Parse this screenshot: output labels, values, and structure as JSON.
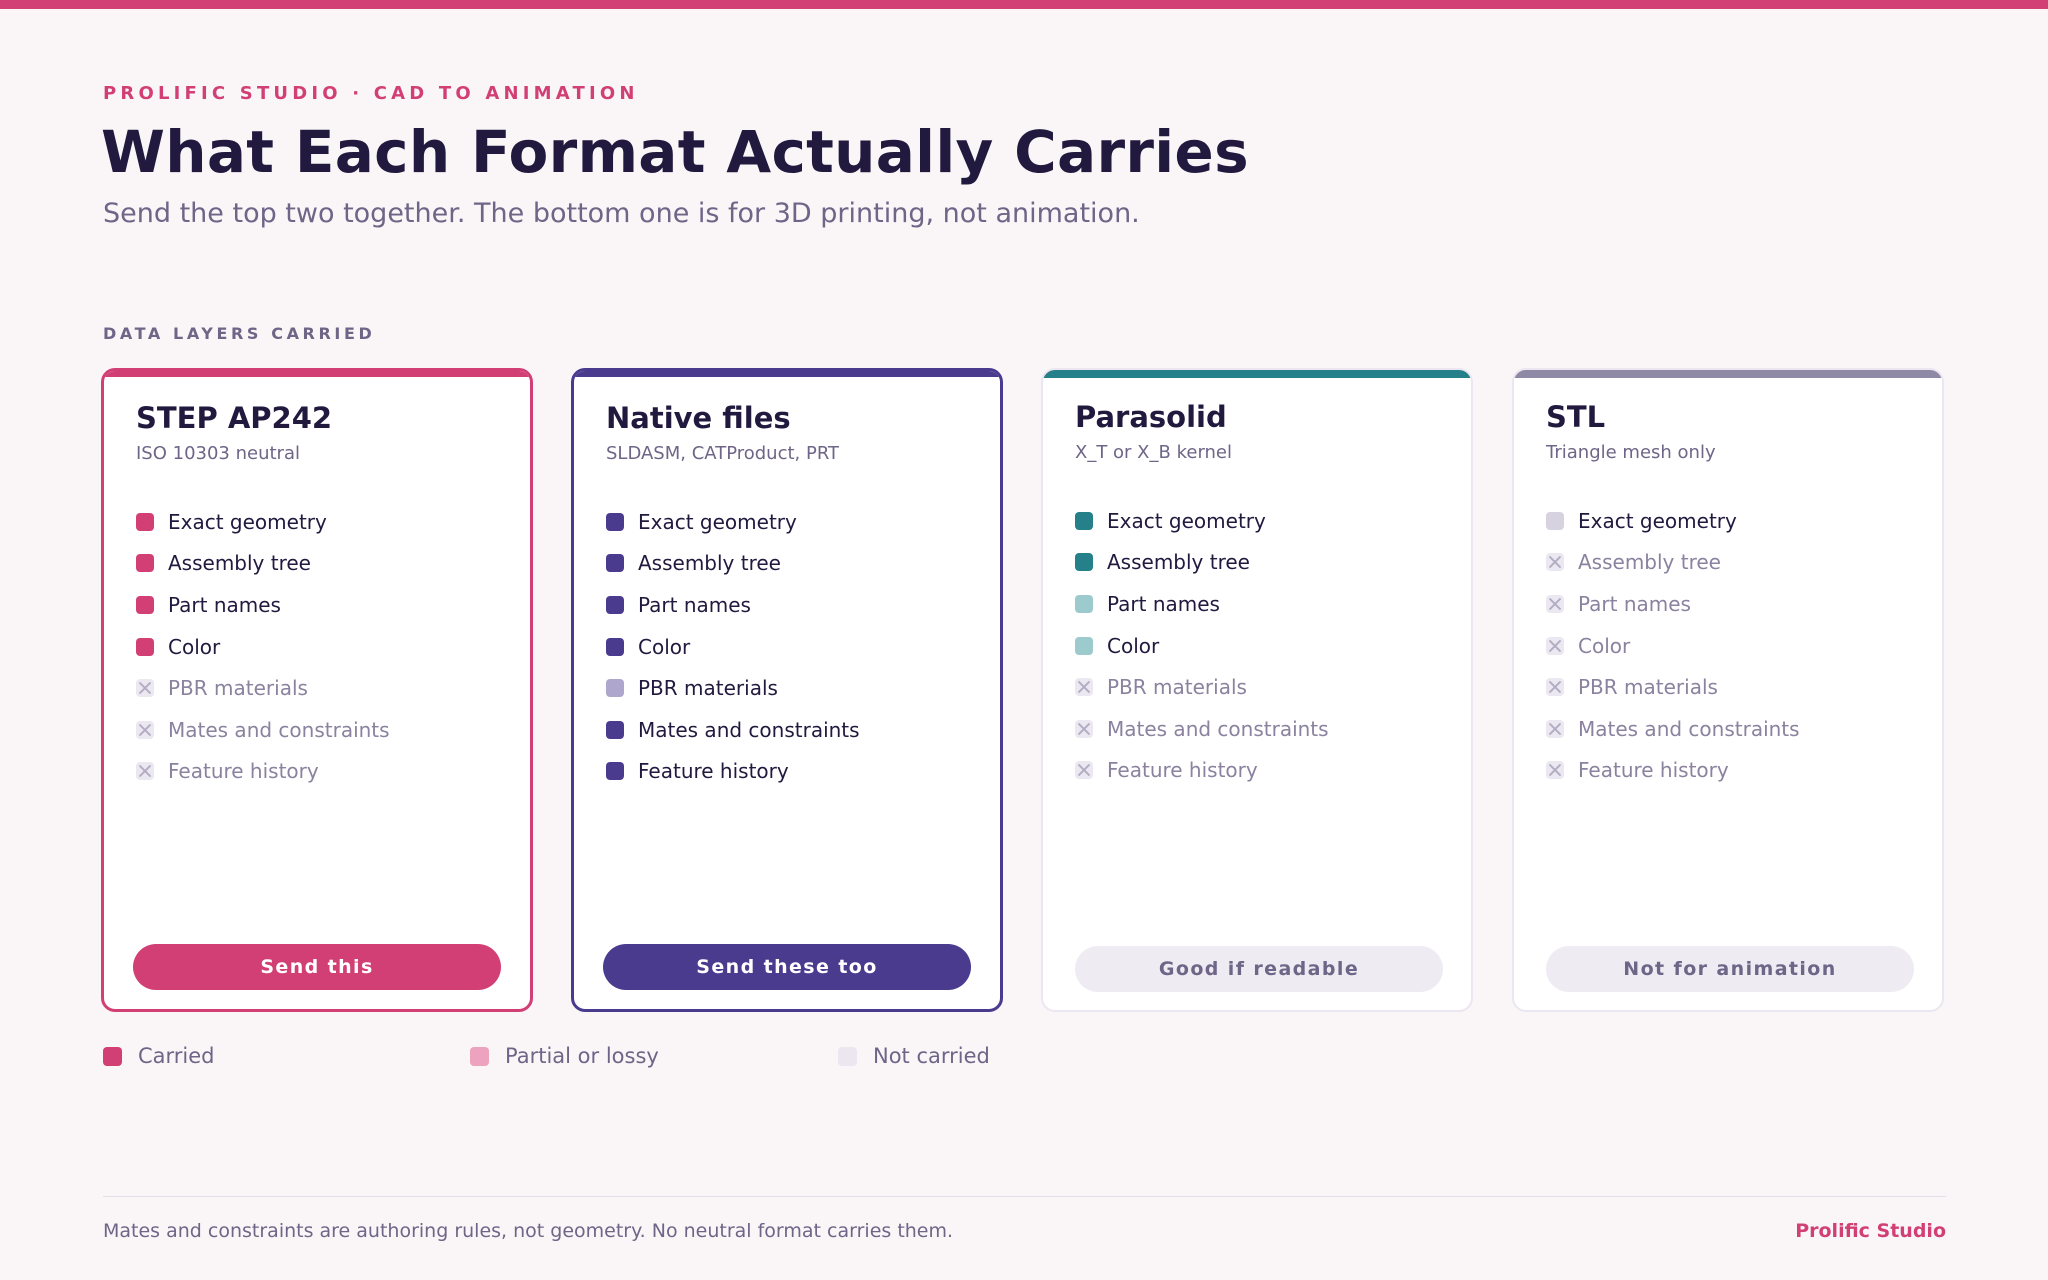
{
  "eyebrow": "PROLIFIC STUDIO · CAD TO ANIMATION",
  "title": "What Each Format Actually Carries",
  "subtitle": "Send the top two together. The bottom one is for 3D printing, not animation.",
  "section_label": "DATA LAYERS CARRIED",
  "colors": {
    "brand": "#d23f74",
    "native": "#4a3b8f",
    "parasolid": "#25808a",
    "stl": "#8e8aa6"
  },
  "cards": [
    {
      "title": "STEP AP242",
      "subtitle": "ISO 10303 neutral",
      "accent": "#d23f74",
      "highlight": true,
      "button": "Send this",
      "button_style": "primary",
      "features": [
        {
          "label": "Exact geometry",
          "status": "carried",
          "color": "#d23f74"
        },
        {
          "label": "Assembly tree",
          "status": "carried",
          "color": "#d23f74"
        },
        {
          "label": "Part names",
          "status": "carried",
          "color": "#d23f74"
        },
        {
          "label": "Color",
          "status": "carried",
          "color": "#d23f74"
        },
        {
          "label": "PBR materials",
          "status": "not",
          "color": "#ece8f1"
        },
        {
          "label": "Mates and constraints",
          "status": "not",
          "color": "#ece8f1"
        },
        {
          "label": "Feature history",
          "status": "not",
          "color": "#ece8f1"
        }
      ]
    },
    {
      "title": "Native files",
      "subtitle": "SLDASM, CATProduct, PRT",
      "accent": "#4a3b8f",
      "highlight": true,
      "button": "Send these too",
      "button_style": "primary",
      "features": [
        {
          "label": "Exact geometry",
          "status": "carried",
          "color": "#4a3b8f"
        },
        {
          "label": "Assembly tree",
          "status": "carried",
          "color": "#4a3b8f"
        },
        {
          "label": "Part names",
          "status": "carried",
          "color": "#4a3b8f"
        },
        {
          "label": "Color",
          "status": "carried",
          "color": "#4a3b8f"
        },
        {
          "label": "PBR materials",
          "status": "partial",
          "color": "#aea6cc"
        },
        {
          "label": "Mates and constraints",
          "status": "carried",
          "color": "#4a3b8f"
        },
        {
          "label": "Feature history",
          "status": "carried",
          "color": "#4a3b8f"
        }
      ]
    },
    {
      "title": "Parasolid",
      "subtitle": "X_T or X_B kernel",
      "accent": "#25808a",
      "highlight": false,
      "button": "Good if readable",
      "button_style": "muted",
      "features": [
        {
          "label": "Exact geometry",
          "status": "carried",
          "color": "#25808a"
        },
        {
          "label": "Assembly tree",
          "status": "carried",
          "color": "#25808a"
        },
        {
          "label": "Part names",
          "status": "partial",
          "color": "#9ccacd"
        },
        {
          "label": "Color",
          "status": "partial",
          "color": "#9ccacd"
        },
        {
          "label": "PBR materials",
          "status": "not",
          "color": "#ece8f1"
        },
        {
          "label": "Mates and constraints",
          "status": "not",
          "color": "#ece8f1"
        },
        {
          "label": "Feature history",
          "status": "not",
          "color": "#ece8f1"
        }
      ]
    },
    {
      "title": "STL",
      "subtitle": "Triangle mesh only",
      "accent": "#8e8aa6",
      "highlight": false,
      "button": "Not for animation",
      "button_style": "muted",
      "features": [
        {
          "label": "Exact geometry",
          "status": "partial",
          "color": "#d6d2df"
        },
        {
          "label": "Assembly tree",
          "status": "not",
          "color": "#ece8f1"
        },
        {
          "label": "Part names",
          "status": "not",
          "color": "#ece8f1"
        },
        {
          "label": "Color",
          "status": "not",
          "color": "#ece8f1"
        },
        {
          "label": "PBR materials",
          "status": "not",
          "color": "#ece8f1"
        },
        {
          "label": "Mates and constraints",
          "status": "not",
          "color": "#ece8f1"
        },
        {
          "label": "Feature history",
          "status": "not",
          "color": "#ece8f1"
        }
      ]
    }
  ],
  "legend": [
    {
      "label": "Carried",
      "color": "#d23f74"
    },
    {
      "label": "Partial or lossy",
      "color": "#eda2bd"
    },
    {
      "label": "Not carried",
      "color": "#ebe6f0"
    }
  ],
  "footer": {
    "note": "Mates and constraints are authoring rules, not geometry. No neutral format carries them.",
    "brand": "Prolific Studio"
  }
}
